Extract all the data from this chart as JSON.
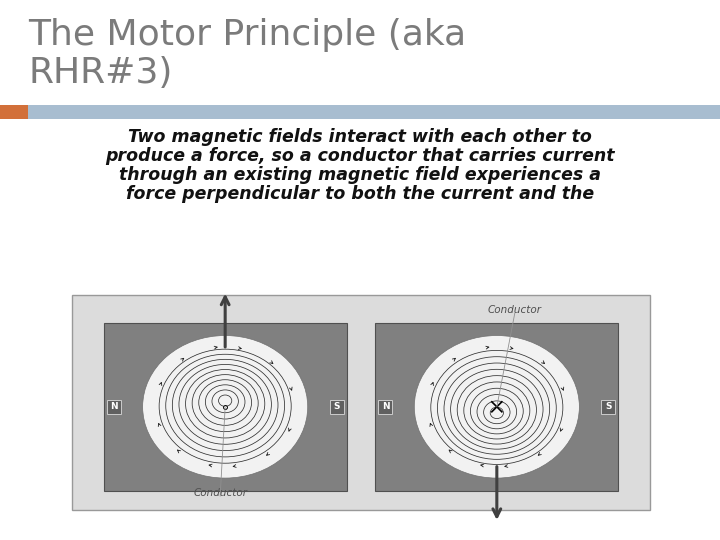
{
  "title_line1": "The Motor Principle (aka",
  "title_line2": "RHR#3)",
  "title_color": "#7B7B7B",
  "title_fontsize": 26,
  "accent_bar_color_orange": "#D2703A",
  "accent_bar_color_blue": "#A8BDD0",
  "body_text_lines": [
    "Two magnetic fields interact with each other to",
    "produce a force, so a conductor that carries current",
    "through an existing magnetic field experiences a",
    "force perpendicular to both the current and the"
  ],
  "body_fontsize": 12.5,
  "background_color": "#FFFFFF",
  "image_panel_bg": "#DCDCDC",
  "image_panel_border": "#AAAAAA",
  "diagram_bg": "#808080",
  "diagram_white": "#F2F2F2",
  "label_conductor": "Conductor",
  "label_n": "N",
  "label_s": "S"
}
